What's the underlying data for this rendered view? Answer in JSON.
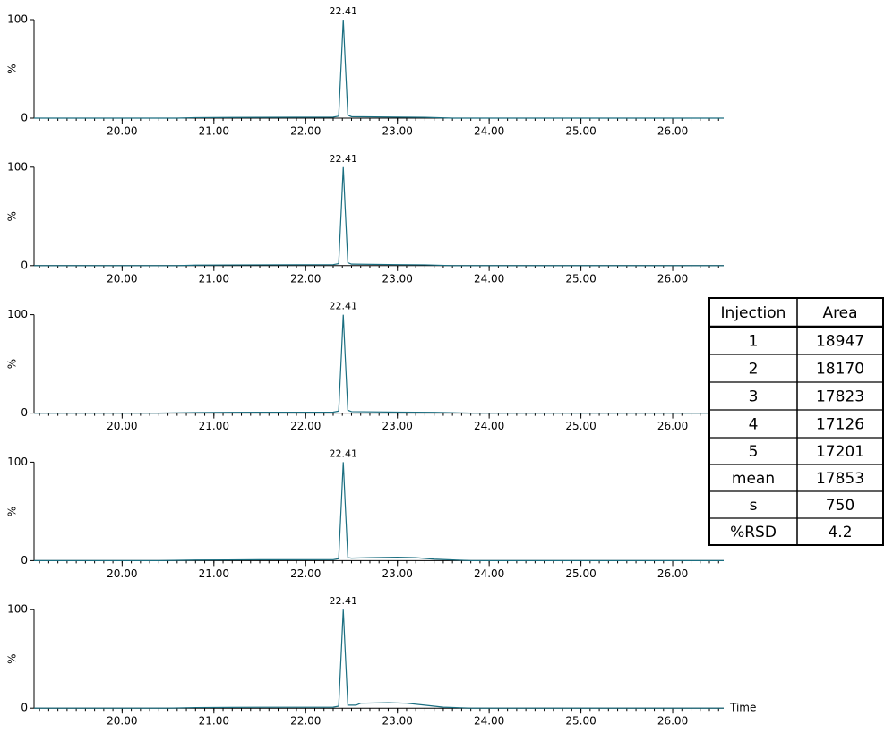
{
  "chart_data": [
    {
      "type": "line",
      "ylabel": "%",
      "ylim": [
        0,
        100
      ],
      "yticks": [
        0,
        100
      ],
      "xlim": [
        19.04,
        26.556
      ],
      "xticks": [
        {
          "value": 20,
          "label": "20.00"
        },
        {
          "value": 21,
          "label": "21.00"
        },
        {
          "value": 22,
          "label": "22.00"
        },
        {
          "value": 23,
          "label": "23.00"
        },
        {
          "value": 24,
          "label": "24.00"
        },
        {
          "value": 25,
          "label": "25.00"
        },
        {
          "value": 26,
          "label": "26.00"
        }
      ],
      "minor_tick_step": 0.1,
      "annotations": [
        {
          "x": 22.41
        }
      ],
      "series": [
        {
          "color": "#1a6e80",
          "x": [
            19.04,
            20.6,
            20.8,
            21.5,
            22.3,
            22.36,
            22.39,
            22.41,
            22.43,
            22.46,
            22.5,
            23.0,
            23.3,
            23.6,
            26.556
          ],
          "values": [
            0,
            0,
            0.5,
            0.8,
            1,
            2,
            60,
            100,
            60,
            3,
            1.5,
            1,
            0.8,
            0,
            0
          ]
        }
      ]
    },
    {
      "type": "line",
      "ylabel": "%",
      "ylim": [
        0,
        100
      ],
      "yticks": [
        0,
        100
      ],
      "xlim": [
        19.04,
        26.556
      ],
      "xticks": [
        {
          "value": 20,
          "label": "20.00"
        },
        {
          "value": 21,
          "label": "21.00"
        },
        {
          "value": 22,
          "label": "22.00"
        },
        {
          "value": 23,
          "label": "23.00"
        },
        {
          "value": 24,
          "label": "24.00"
        },
        {
          "value": 25,
          "label": "25.00"
        },
        {
          "value": 26,
          "label": "26.00"
        }
      ],
      "minor_tick_step": 0.1,
      "annotations": [
        {
          "x": 22.41
        }
      ],
      "series": [
        {
          "color": "#1a6e80",
          "x": [
            19.04,
            20.6,
            20.8,
            21.5,
            22.3,
            22.36,
            22.39,
            22.41,
            22.43,
            22.46,
            22.5,
            23.0,
            23.3,
            23.6,
            26.556
          ],
          "values": [
            0,
            0,
            0.5,
            0.8,
            1,
            2,
            60,
            100,
            60,
            3,
            1.5,
            1,
            0.8,
            0,
            0
          ]
        }
      ]
    },
    {
      "type": "line",
      "ylabel": "%",
      "ylim": [
        0,
        100
      ],
      "yticks": [
        0,
        100
      ],
      "xlim": [
        19.04,
        26.556
      ],
      "xticks": [
        {
          "value": 20,
          "label": "20.00"
        },
        {
          "value": 21,
          "label": "21.00"
        },
        {
          "value": 22,
          "label": "22.00"
        },
        {
          "value": 23,
          "label": "23.00"
        },
        {
          "value": 24,
          "label": "24.00"
        },
        {
          "value": 25,
          "label": "25.00"
        },
        {
          "value": 26,
          "label": "26.00"
        }
      ],
      "minor_tick_step": 0.1,
      "annotations": [
        {
          "x": 22.41
        }
      ],
      "series": [
        {
          "color": "#1a6e80",
          "x": [
            19.04,
            20.4,
            20.8,
            21.5,
            22.3,
            22.36,
            22.39,
            22.41,
            22.43,
            22.46,
            22.5,
            23.0,
            23.4,
            23.8,
            26.556
          ],
          "values": [
            0,
            0,
            0.6,
            0.9,
            1,
            2,
            60,
            100,
            60,
            3,
            1.5,
            1,
            0.8,
            0,
            0
          ]
        }
      ]
    },
    {
      "type": "line",
      "ylabel": "%",
      "ylim": [
        0,
        100
      ],
      "yticks": [
        0,
        100
      ],
      "xlim": [
        19.04,
        26.556
      ],
      "xticks": [
        {
          "value": 20,
          "label": "20.00"
        },
        {
          "value": 21,
          "label": "21.00"
        },
        {
          "value": 22,
          "label": "22.00"
        },
        {
          "value": 23,
          "label": "23.00"
        },
        {
          "value": 24,
          "label": "24.00"
        },
        {
          "value": 25,
          "label": "25.00"
        },
        {
          "value": 26,
          "label": "26.00"
        }
      ],
      "minor_tick_step": 0.1,
      "annotations": [
        {
          "x": 22.41
        }
      ],
      "series": [
        {
          "color": "#1a6e80",
          "x": [
            19.04,
            20.4,
            20.8,
            21.5,
            22.3,
            22.36,
            22.39,
            22.41,
            22.43,
            22.46,
            22.5,
            22.7,
            23.0,
            23.2,
            23.4,
            23.8,
            26.556
          ],
          "values": [
            0,
            0,
            0.6,
            0.9,
            1,
            2,
            60,
            100,
            60,
            3,
            2.5,
            3,
            3.5,
            3,
            1.5,
            0,
            0
          ]
        }
      ]
    },
    {
      "type": "line",
      "ylabel": "%",
      "xlabel": "Time",
      "ylim": [
        0,
        100
      ],
      "yticks": [
        0,
        100
      ],
      "xlim": [
        19.04,
        26.556
      ],
      "xticks": [
        {
          "value": 20,
          "label": "20.00"
        },
        {
          "value": 21,
          "label": "21.00"
        },
        {
          "value": 22,
          "label": "22.00"
        },
        {
          "value": 23,
          "label": "23.00"
        },
        {
          "value": 24,
          "label": "24.00"
        },
        {
          "value": 25,
          "label": "25.00"
        },
        {
          "value": 26,
          "label": "26.00"
        }
      ],
      "minor_tick_step": 0.1,
      "annotations": [
        {
          "x": 22.41
        }
      ],
      "series": [
        {
          "color": "#1a6e80",
          "x": [
            19.04,
            20.5,
            20.8,
            21.5,
            22.3,
            22.36,
            22.39,
            22.41,
            22.43,
            22.46,
            22.55,
            22.6,
            22.9,
            23.1,
            23.3,
            23.5,
            23.8,
            26.556
          ],
          "values": [
            0,
            0,
            0.6,
            0.9,
            1,
            2,
            60,
            100,
            60,
            3,
            3,
            5,
            5.5,
            5,
            3,
            1,
            0,
            0
          ]
        }
      ]
    }
  ],
  "table": {
    "header": [
      "Injection",
      "Area"
    ],
    "rows": [
      [
        1,
        18947
      ],
      [
        2,
        18170
      ],
      [
        3,
        17823
      ],
      [
        4,
        17126
      ],
      [
        5,
        17201
      ],
      [
        "mean",
        17853
      ],
      [
        "s",
        750
      ],
      [
        "%RSD",
        4.2
      ]
    ]
  }
}
